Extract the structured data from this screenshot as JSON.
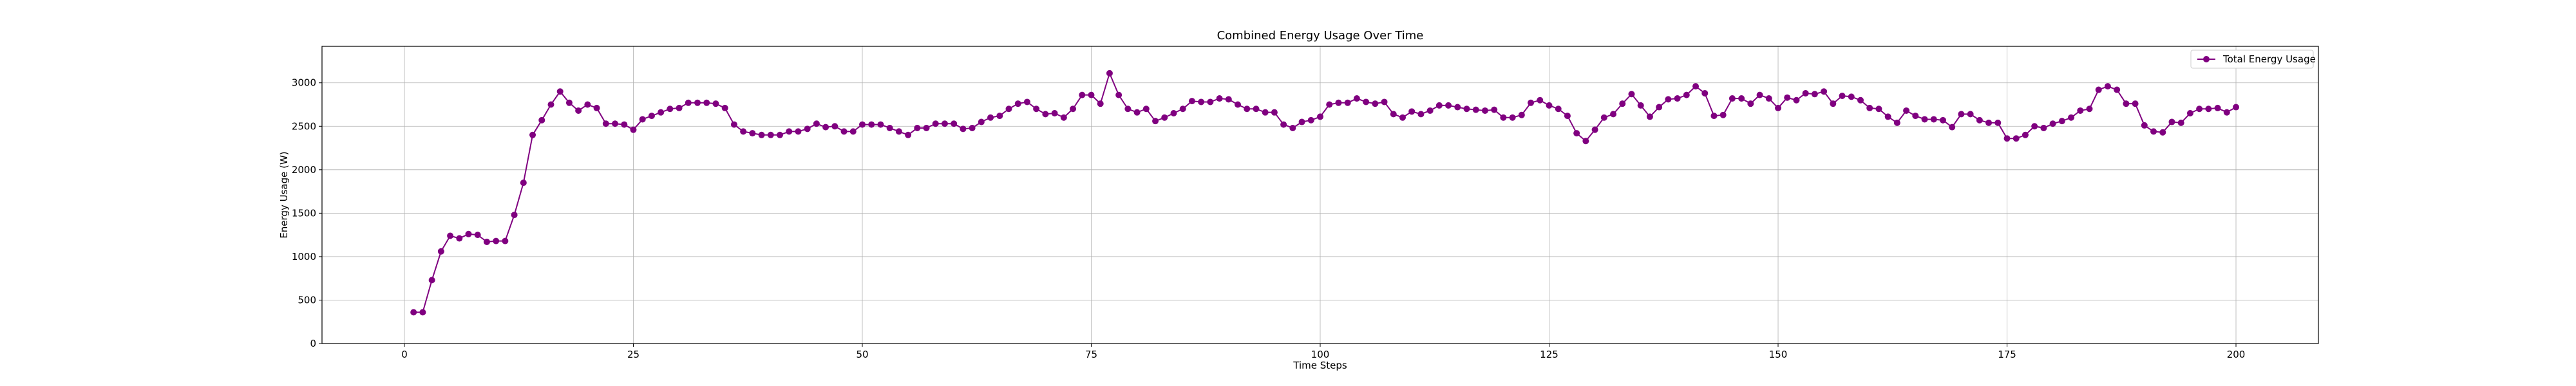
{
  "chart_data": {
    "type": "line",
    "title": "Combined Energy Usage Over Time",
    "xlabel": "Time Steps",
    "ylabel": "Energy Usage (W)",
    "xlim": [
      -9,
      209
    ],
    "ylim": [
      0,
      3420
    ],
    "xticks": [
      0,
      25,
      50,
      75,
      100,
      125,
      150,
      175,
      200
    ],
    "yticks": [
      0,
      500,
      1000,
      1500,
      2000,
      2500,
      3000
    ],
    "grid": true,
    "legend_position": "top-right",
    "series": [
      {
        "name": "Total Energy Usage",
        "color": "#800080",
        "marker": "circle",
        "x": [
          1,
          2,
          3,
          4,
          5,
          6,
          7,
          8,
          9,
          10,
          11,
          12,
          13,
          14,
          15,
          16,
          17,
          18,
          19,
          20,
          21,
          22,
          23,
          24,
          25,
          26,
          27,
          28,
          29,
          30,
          31,
          32,
          33,
          34,
          35,
          36,
          37,
          38,
          39,
          40,
          41,
          42,
          43,
          44,
          45,
          46,
          47,
          48,
          49,
          50,
          51,
          52,
          53,
          54,
          55,
          56,
          57,
          58,
          59,
          60,
          61,
          62,
          63,
          64,
          65,
          66,
          67,
          68,
          69,
          70,
          71,
          72,
          73,
          74,
          75,
          76,
          77,
          78,
          79,
          80,
          81,
          82,
          83,
          84,
          85,
          86,
          87,
          88,
          89,
          90,
          91,
          92,
          93,
          94,
          95,
          96,
          97,
          98,
          99,
          100,
          101,
          102,
          103,
          104,
          105,
          106,
          107,
          108,
          109,
          110,
          111,
          112,
          113,
          114,
          115,
          116,
          117,
          118,
          119,
          120,
          121,
          122,
          123,
          124,
          125,
          126,
          127,
          128,
          129,
          130,
          131,
          132,
          133,
          134,
          135,
          136,
          137,
          138,
          139,
          140,
          141,
          142,
          143,
          144,
          145,
          146,
          147,
          148,
          149,
          150,
          151,
          152,
          153,
          154,
          155,
          156,
          157,
          158,
          159,
          160,
          161,
          162,
          163,
          164,
          165,
          166,
          167,
          168,
          169,
          170,
          171,
          172,
          173,
          174,
          175,
          176,
          177,
          178,
          179,
          180,
          181,
          182,
          183,
          184,
          185,
          186,
          187,
          188,
          189,
          190,
          191,
          192,
          193,
          194,
          195,
          196,
          197,
          198,
          199,
          200
        ],
        "values": [
          360,
          360,
          730,
          1060,
          1240,
          1210,
          1260,
          1250,
          1170,
          1180,
          1180,
          1480,
          1850,
          2400,
          2570,
          2750,
          2900,
          2770,
          2680,
          2750,
          2710,
          2530,
          2530,
          2520,
          2460,
          2580,
          2620,
          2660,
          2700,
          2710,
          2770,
          2770,
          2770,
          2760,
          2710,
          2520,
          2440,
          2420,
          2400,
          2400,
          2400,
          2440,
          2440,
          2470,
          2530,
          2490,
          2500,
          2440,
          2440,
          2520,
          2520,
          2520,
          2480,
          2440,
          2400,
          2480,
          2480,
          2530,
          2530,
          2530,
          2470,
          2480,
          2550,
          2600,
          2620,
          2700,
          2760,
          2780,
          2700,
          2640,
          2650,
          2600,
          2700,
          2860,
          2860,
          2760,
          3110,
          2860,
          2700,
          2660,
          2700,
          2560,
          2600,
          2650,
          2700,
          2790,
          2780,
          2780,
          2820,
          2810,
          2750,
          2700,
          2700,
          2660,
          2660,
          2520,
          2480,
          2550,
          2570,
          2610,
          2750,
          2770,
          2770,
          2820,
          2780,
          2760,
          2780,
          2640,
          2600,
          2670,
          2640,
          2680,
          2740,
          2740,
          2720,
          2700,
          2690,
          2680,
          2690,
          2600,
          2600,
          2630,
          2770,
          2800,
          2740,
          2700,
          2620,
          2420,
          2330,
          2460,
          2600,
          2640,
          2760,
          2870,
          2740,
          2610,
          2720,
          2810,
          2820,
          2860,
          2960,
          2880,
          2620,
          2630,
          2820,
          2820,
          2760,
          2860,
          2820,
          2710,
          2830,
          2800,
          2880,
          2870,
          2900,
          2760,
          2850,
          2840,
          2800,
          2710,
          2700,
          2610,
          2540,
          2680,
          2620,
          2580,
          2580,
          2570,
          2490,
          2640,
          2640,
          2570,
          2540,
          2540,
          2360,
          2360,
          2400,
          2500,
          2480,
          2530,
          2560,
          2600,
          2680,
          2700,
          2920,
          2960,
          2920,
          2760,
          2760,
          2510,
          2440,
          2430,
          2550,
          2540,
          2650,
          2700,
          2700,
          2710,
          2660,
          2720
        ]
      }
    ]
  }
}
